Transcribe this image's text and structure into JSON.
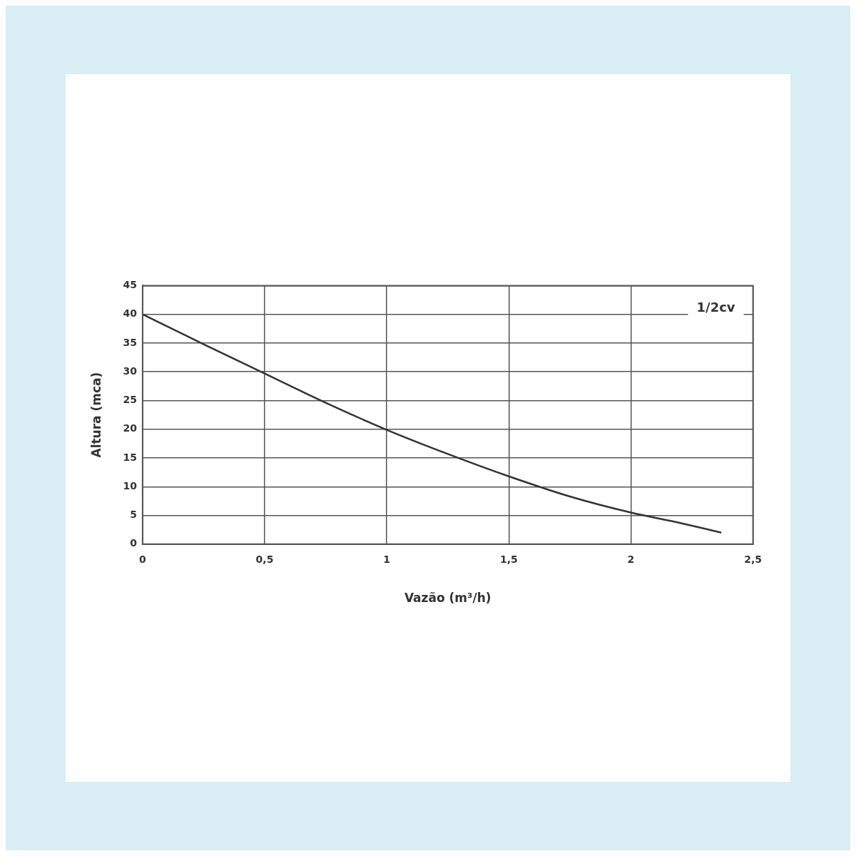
{
  "chart_data": {
    "type": "line",
    "xlabel": "Vazão (m³/h)",
    "ylabel": "Altura (mca)",
    "x": [
      0,
      0.25,
      0.5,
      0.75,
      1,
      1.25,
      1.5,
      1.75,
      2,
      2.2,
      2.37
    ],
    "series": [
      {
        "name": "1/2cv",
        "color": "#333333",
        "values": [
          40,
          34.8,
          29.7,
          24.6,
          19.9,
          15.7,
          11.8,
          8.3,
          5.5,
          3.7,
          2
        ]
      }
    ],
    "xlim": [
      0,
      2.5
    ],
    "xticks": [
      0,
      {
        "value": 0.5,
        "label": "0,5"
      },
      1,
      {
        "value": 1.5,
        "label": "1,5"
      },
      2,
      {
        "value": 2.5,
        "label": "2,5"
      }
    ],
    "ylim": [
      0,
      45
    ],
    "yticks": [
      0,
      5,
      10,
      15,
      20,
      25,
      30,
      35,
      40,
      45
    ],
    "grid": true,
    "legend": "top right",
    "marker": "none",
    "line_style": "solid"
  }
}
